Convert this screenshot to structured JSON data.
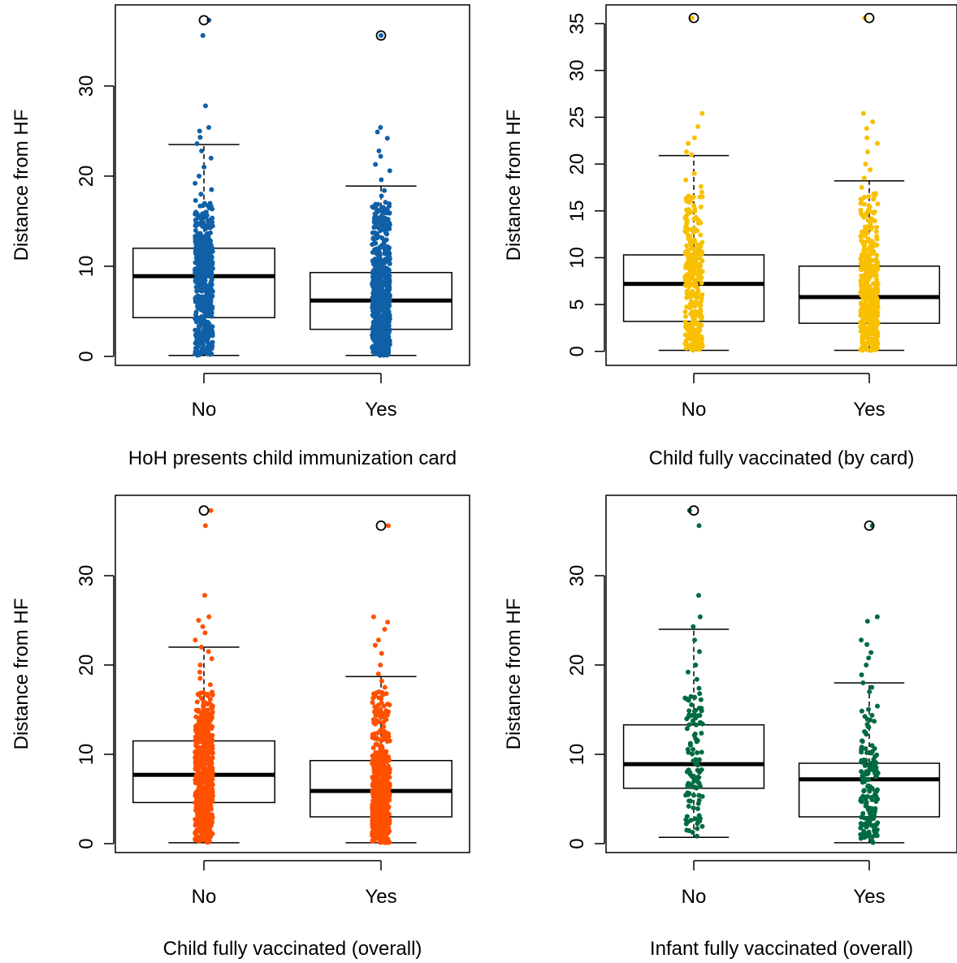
{
  "chart_data": [
    {
      "type": "box-strip",
      "xlabel": "HoH presents child immunization card",
      "ylabel": "Distance from HF",
      "categories": [
        "No",
        "Yes"
      ],
      "ylim": [
        -1,
        39
      ],
      "yticks": [
        0,
        10,
        20,
        30
      ],
      "point_color": "#1060A8",
      "boxes": [
        {
          "category": "No",
          "whisker_low": 0.1,
          "q1": 4.3,
          "median": 8.9,
          "q3": 12.0,
          "whisker_high": 23.5,
          "outliers": [
            37.3
          ]
        },
        {
          "category": "Yes",
          "whisker_low": 0.1,
          "q1": 3.0,
          "median": 6.2,
          "q3": 9.3,
          "whisker_high": 18.9,
          "outliers": [
            35.6
          ]
        }
      ],
      "points": {
        "No": {
          "count": 520,
          "values": [
            37.3,
            35.6,
            27.8,
            25.4,
            25.0,
            24.3,
            23.6,
            22.8,
            22.0,
            21.0,
            20.0,
            19.2,
            18.5,
            18.0,
            17.3,
            16.8
          ]
        },
        "Yes": {
          "count": 700,
          "values": [
            35.6,
            25.4,
            24.9,
            24.2,
            22.8,
            22.2,
            21.3,
            20.6,
            19.6,
            18.4,
            17.8,
            17.1,
            16.5
          ]
        }
      }
    },
    {
      "type": "box-strip",
      "xlabel": "Child fully vaccinated (by card)",
      "ylabel": "Distance from HF",
      "categories": [
        "No",
        "Yes"
      ],
      "ylim": [
        -1.5,
        37
      ],
      "yticks": [
        0,
        5,
        10,
        15,
        20,
        25,
        30,
        35
      ],
      "point_color": "#F8C000",
      "boxes": [
        {
          "category": "No",
          "whisker_low": 0.1,
          "q1": 3.2,
          "median": 7.2,
          "q3": 10.3,
          "whisker_high": 20.9,
          "outliers": [
            35.6
          ]
        },
        {
          "category": "Yes",
          "whisker_low": 0.1,
          "q1": 3.0,
          "median": 5.8,
          "q3": 9.1,
          "whisker_high": 18.2,
          "outliers": [
            35.6
          ]
        }
      ],
      "points": {
        "No": {
          "count": 330,
          "values": [
            35.6,
            25.4,
            24.0,
            22.8,
            22.2,
            21.3,
            21.0,
            19.0,
            18.3,
            17.6,
            17.0,
            16.5
          ]
        },
        "Yes": {
          "count": 480,
          "values": [
            35.6,
            25.4,
            24.5,
            23.8,
            22.8,
            22.2,
            21.3,
            20.0,
            19.4,
            18.5,
            17.5,
            16.8
          ]
        }
      }
    },
    {
      "type": "box-strip",
      "xlabel": "Child fully vaccinated (overall)",
      "ylabel": "Distance from HF",
      "categories": [
        "No",
        "Yes"
      ],
      "ylim": [
        -1,
        39
      ],
      "yticks": [
        0,
        10,
        20,
        30
      ],
      "point_color": "#FF5000",
      "boxes": [
        {
          "category": "No",
          "whisker_low": 0.1,
          "q1": 4.6,
          "median": 7.7,
          "q3": 11.5,
          "whisker_high": 22.0,
          "outliers": [
            37.3
          ]
        },
        {
          "category": "Yes",
          "whisker_low": 0.1,
          "q1": 3.0,
          "median": 5.9,
          "q3": 9.3,
          "whisker_high": 18.7,
          "outliers": [
            35.6
          ]
        }
      ],
      "points": {
        "No": {
          "count": 650,
          "values": [
            37.3,
            35.6,
            27.8,
            25.4,
            25.0,
            24.3,
            23.6,
            22.8,
            22.0,
            21.5,
            20.7,
            20.0,
            19.2,
            18.5,
            17.8
          ]
        },
        "Yes": {
          "count": 520,
          "values": [
            35.6,
            25.4,
            24.8,
            24.0,
            22.8,
            22.2,
            21.3,
            20.0,
            19.0,
            18.2,
            17.5,
            16.8
          ]
        }
      }
    },
    {
      "type": "box-strip",
      "xlabel": "Infant fully vaccinated (overall)",
      "ylabel": "Distance from HF",
      "categories": [
        "No",
        "Yes"
      ],
      "ylim": [
        -1,
        39
      ],
      "yticks": [
        0,
        10,
        20,
        30
      ],
      "point_color": "#006B40",
      "boxes": [
        {
          "category": "No",
          "whisker_low": 0.7,
          "q1": 6.2,
          "median": 8.9,
          "q3": 13.3,
          "whisker_high": 24.0,
          "outliers": [
            37.3
          ]
        },
        {
          "category": "Yes",
          "whisker_low": 0.1,
          "q1": 3.0,
          "median": 7.2,
          "q3": 9.0,
          "whisker_high": 18.0,
          "outliers": [
            35.6
          ]
        }
      ],
      "points": {
        "No": {
          "count": 120,
          "values": [
            37.3,
            35.6,
            27.8,
            25.4,
            24.3,
            22.8,
            21.5,
            20.0,
            19.2,
            18.4,
            17.4,
            16.8
          ]
        },
        "Yes": {
          "count": 170,
          "values": [
            35.6,
            25.4,
            24.9,
            22.8,
            22.3,
            21.4,
            20.8,
            20.0,
            18.9,
            18.0,
            17.5,
            17.0
          ]
        }
      }
    }
  ]
}
